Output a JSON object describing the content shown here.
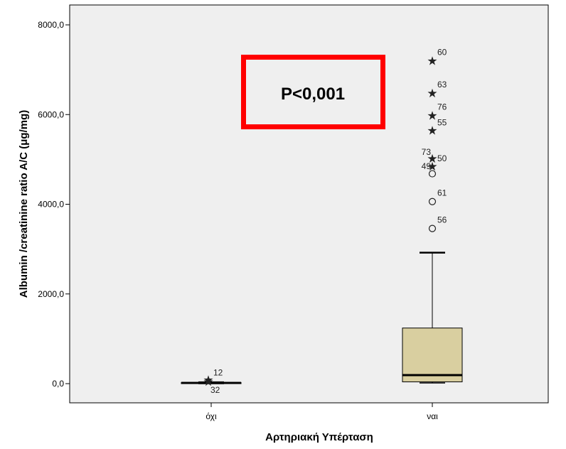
{
  "chart_data": {
    "type": "box",
    "xlabel": "Αρτηριακή Υπέρταση",
    "ylabel": "Albumin /creatinine ratio A/C (μg/mg)",
    "ylim": [
      -430,
      8600
    ],
    "yticks": [
      0,
      2000,
      4000,
      6000,
      8000
    ],
    "ytick_labels": [
      "0,0",
      "2000,0",
      "4000,0",
      "6000,0",
      "8000,0"
    ],
    "categories": [
      "όχι",
      "ναι"
    ],
    "boxes": [
      {
        "category": "όχι",
        "min": 0,
        "q1": 0,
        "median": 15,
        "q3": 25,
        "max": 30,
        "outliers": [
          {
            "value": 90,
            "label": "12",
            "symbol": "star"
          },
          {
            "value": 50,
            "label": "32",
            "symbol": "star"
          }
        ]
      },
      {
        "category": "ναι",
        "min": 15,
        "q1": 40,
        "median": 190,
        "q3": 1240,
        "max": 2920,
        "outliers": [
          {
            "value": 7200,
            "label": "60",
            "symbol": "star"
          },
          {
            "value": 6480,
            "label": "63",
            "symbol": "star"
          },
          {
            "value": 5980,
            "label": "76",
            "symbol": "star"
          },
          {
            "value": 5650,
            "label": "55",
            "symbol": "star"
          },
          {
            "value": 5020,
            "label": "73",
            "symbol": "star"
          },
          {
            "value": 4850,
            "label": "49",
            "symbol": "star"
          },
          {
            "value": 4680,
            "label": "50",
            "symbol": "circle"
          },
          {
            "value": 4060,
            "label": "61",
            "symbol": "circle"
          },
          {
            "value": 3460,
            "label": "56",
            "symbol": "circle"
          }
        ]
      }
    ],
    "box_color": "#d9cfa0",
    "plot_background": "#efefef",
    "annotation": {
      "text": "P<0,001",
      "border_color": "#ff0000"
    }
  }
}
